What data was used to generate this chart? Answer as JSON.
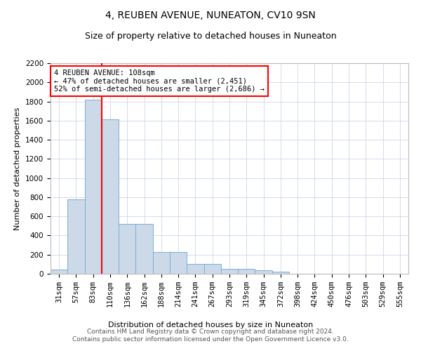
{
  "title": "4, REUBEN AVENUE, NUNEATON, CV10 9SN",
  "subtitle": "Size of property relative to detached houses in Nuneaton",
  "xlabel": "Distribution of detached houses by size in Nuneaton",
  "ylabel": "Number of detached properties",
  "footer1": "Contains HM Land Registry data © Crown copyright and database right 2024.",
  "footer2": "Contains public sector information licensed under the Open Government Licence v3.0.",
  "annotation_title": "4 REUBEN AVENUE: 108sqm",
  "annotation_line1": "← 47% of detached houses are smaller (2,451)",
  "annotation_line2": "52% of semi-detached houses are larger (2,686) →",
  "bar_labels": [
    "31sqm",
    "57sqm",
    "83sqm",
    "110sqm",
    "136sqm",
    "162sqm",
    "188sqm",
    "214sqm",
    "241sqm",
    "267sqm",
    "293sqm",
    "319sqm",
    "345sqm",
    "372sqm",
    "398sqm",
    "424sqm",
    "450sqm",
    "476sqm",
    "503sqm",
    "529sqm",
    "555sqm"
  ],
  "bar_values": [
    45,
    780,
    1820,
    1610,
    520,
    520,
    230,
    230,
    105,
    105,
    55,
    55,
    35,
    20,
    0,
    0,
    0,
    0,
    0,
    0,
    0
  ],
  "bar_color": "#ccd9e8",
  "bar_edge_color": "#7aafd4",
  "red_line_x": 2.5,
  "ylim": [
    0,
    2200
  ],
  "yticks": [
    0,
    200,
    400,
    600,
    800,
    1000,
    1200,
    1400,
    1600,
    1800,
    2000,
    2200
  ],
  "title_fontsize": 10,
  "subtitle_fontsize": 9,
  "ylabel_fontsize": 8,
  "xlabel_fontsize": 8,
  "tick_fontsize": 7.5,
  "footer_fontsize": 6.5,
  "annotation_fontsize": 7.5
}
